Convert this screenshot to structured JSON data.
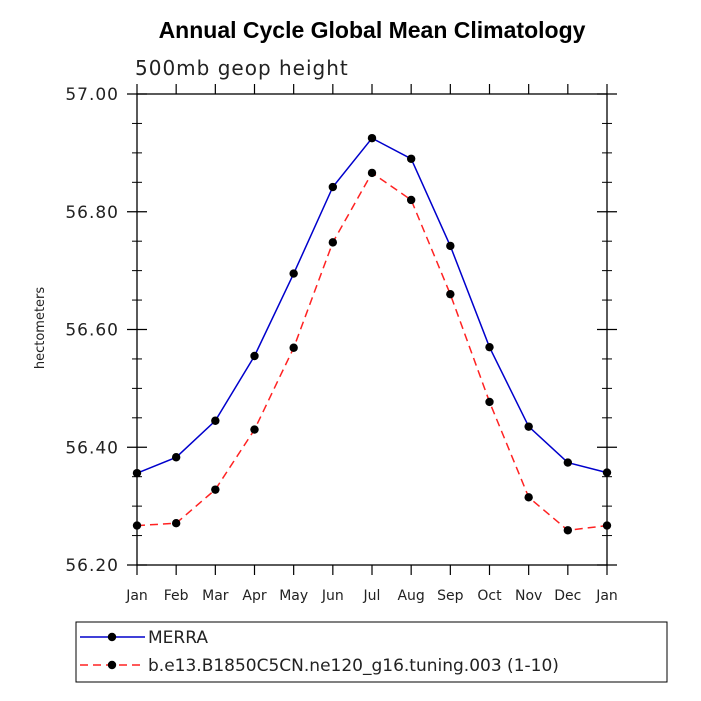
{
  "chart_data": {
    "type": "line",
    "title": "Annual Cycle Global Mean Climatology",
    "subtitle": "500mb geop height",
    "xlabel": "",
    "ylabel": "hectometers",
    "categories": [
      "Jan",
      "Feb",
      "Mar",
      "Apr",
      "May",
      "Jun",
      "Jul",
      "Aug",
      "Sep",
      "Oct",
      "Nov",
      "Dec",
      "Jan"
    ],
    "ylim": [
      56.2,
      57.0
    ],
    "yticks": [
      "56.20",
      "56.40",
      "56.60",
      "56.80",
      "57.00"
    ],
    "grid": false,
    "legend_position": "bottom",
    "series": [
      {
        "name": "MERRA",
        "color": "#0000cc",
        "line_style": "solid",
        "values": [
          56.356,
          56.383,
          56.445,
          56.555,
          56.695,
          56.842,
          56.925,
          56.89,
          56.742,
          56.57,
          56.435,
          56.374,
          56.357
        ]
      },
      {
        "name": "b.e13.B1850C5CN.ne120_g16.tuning.003 (1-10)",
        "color": "#ff2222",
        "line_style": "dashed",
        "values": [
          56.267,
          56.271,
          56.328,
          56.43,
          56.569,
          56.748,
          56.866,
          56.82,
          56.66,
          56.477,
          56.315,
          56.259,
          56.267
        ]
      }
    ]
  }
}
